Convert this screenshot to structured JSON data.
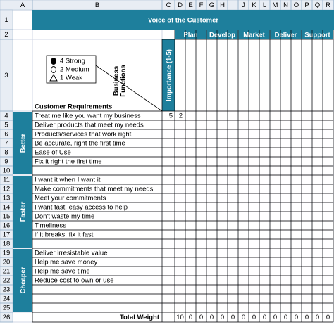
{
  "column_headers": [
    "A",
    "B",
    "C",
    "D",
    "E",
    "F",
    "G",
    "H",
    "I",
    "J",
    "K",
    "L",
    "M",
    "N",
    "O",
    "P",
    "Q",
    "R"
  ],
  "row_headers": [
    "1",
    "2",
    "3",
    "4",
    "5",
    "6",
    "7",
    "8",
    "9",
    "10",
    "11",
    "12",
    "13",
    "14",
    "15",
    "16",
    "17",
    "18",
    "19",
    "20",
    "21",
    "22",
    "23",
    "24",
    "25",
    "26"
  ],
  "title": "Voice of the Customer",
  "functions": [
    "Plan",
    "Develop",
    "Market",
    "Deliver",
    "Support"
  ],
  "importance_header": "Importance (1-5)",
  "legend": [
    {
      "symbol": "filled-circle",
      "label": "4 Strong"
    },
    {
      "symbol": "open-circle",
      "label": "2 Medium"
    },
    {
      "symbol": "triangle",
      "label": "1 Weak"
    }
  ],
  "business_functions_label": [
    "Business",
    "Functions"
  ],
  "customer_requirements_label": "Customer Requirements",
  "groups": [
    {
      "label": "Better",
      "items": [
        {
          "text": "Treat me like you want my business",
          "importance": 5,
          "scores": [
            2
          ]
        },
        {
          "text": "Deliver products that meet my needs"
        },
        {
          "text": "Products/services that work right"
        },
        {
          "text": "Be accurate, right the first time"
        },
        {
          "text": "Ease of Use"
        },
        {
          "text": "Fix it right the first time"
        }
      ]
    },
    {
      "label": "Faster",
      "items": [
        {
          "text": "I want it when I want it"
        },
        {
          "text": "Make commitments that meet my needs"
        },
        {
          "text": "Meet your commitments"
        },
        {
          "text": "I want fast, easy access to help"
        },
        {
          "text": "Don't waste my time"
        },
        {
          "text": "Timeliness"
        },
        {
          "text": "if it breaks, fix it fast"
        }
      ]
    },
    {
      "label": "Cheaper",
      "items": [
        {
          "text": "Deliver irresistable value"
        },
        {
          "text": "Help me save money"
        },
        {
          "text": "Help me save time"
        },
        {
          "text": "Reduce cost to own or use"
        }
      ]
    }
  ],
  "total_label": "Total Weight",
  "totals": [
    10,
    0,
    0,
    0,
    0,
    0,
    0,
    0,
    0,
    0,
    0,
    0,
    0,
    0,
    0
  ]
}
